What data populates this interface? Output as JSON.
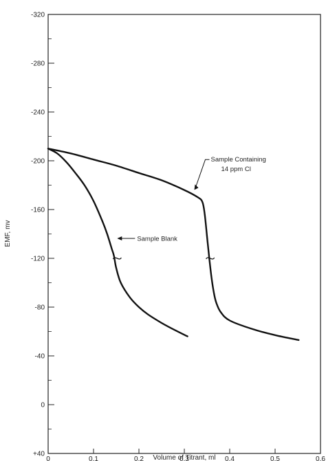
{
  "chart_data": {
    "type": "line",
    "title": "",
    "xlabel": "Volume of Titrant, ml",
    "ylabel": "EMF, mv",
    "xlim": [
      0,
      0.6
    ],
    "ylim": [
      40,
      -320
    ],
    "y_axis_inverted": true,
    "grid": false,
    "x_ticks": [
      0,
      0.1,
      0.2,
      0.3,
      0.4,
      0.5,
      0.6
    ],
    "x_tick_labels": [
      "0",
      "0.1",
      "0.2",
      "0.3",
      "0.4",
      "0.5",
      "0.6"
    ],
    "y_ticks": [
      -320,
      -280,
      -240,
      -200,
      -160,
      -120,
      -80,
      -40,
      0,
      40
    ],
    "y_tick_labels": [
      "-320",
      "-280",
      "-240",
      "-200",
      "-160",
      "-120",
      "-80",
      "-40",
      "0",
      "+40"
    ],
    "series": [
      {
        "x": [
          0,
          0.02,
          0.04,
          0.06,
          0.08,
          0.1,
          0.12,
          0.13,
          0.14,
          0.145,
          0.15,
          0.16,
          0.18,
          0.2,
          0.22,
          0.25,
          0.28,
          0.307
        ],
        "y": [
          -210,
          -206,
          -199,
          -190,
          -180,
          -167,
          -150,
          -140,
          -128,
          -122,
          -112,
          -100,
          -88,
          -80,
          -74,
          -67,
          -61,
          -56
        ]
      },
      {
        "x": [
          0,
          0.05,
          0.1,
          0.15,
          0.2,
          0.25,
          0.3,
          0.33,
          0.34,
          0.345,
          0.35,
          0.355,
          0.36,
          0.365,
          0.37,
          0.38,
          0.4,
          0.45,
          0.5,
          0.552
        ],
        "y": [
          -210,
          -206,
          -201,
          -196,
          -190,
          -184,
          -176,
          -170,
          -166,
          -156,
          -138,
          -120,
          -104,
          -92,
          -84,
          -76,
          -69,
          -62,
          -57,
          -53
        ]
      }
    ],
    "annotations": [
      {
        "text": "Sample Blank",
        "x": 0.152,
        "y": -138,
        "target_x": 0.152,
        "target_y": -138
      },
      {
        "text": "Sample Containing",
        "text2": "14 ppm Cl",
        "x": 0.322,
        "y": -175,
        "target_x": 0.322,
        "target_y": -175
      }
    ],
    "break_marks": [
      {
        "x": 0.152,
        "y": -120
      },
      {
        "x": 0.357,
        "y": -120
      }
    ]
  }
}
